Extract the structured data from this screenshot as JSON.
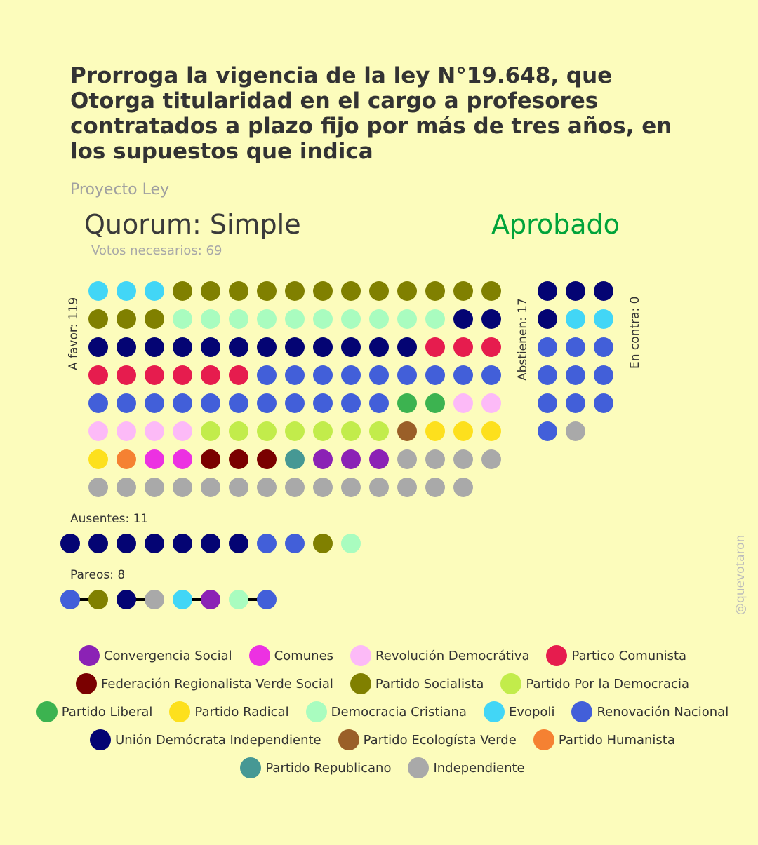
{
  "title": "Prorroga la vigencia de la ley N°19.648, que Otorga titularidad en el cargo a profesores contratados a plazo fijo por más de tres años, en los supuestos que indica",
  "subtitle": "Proyecto Ley",
  "quorum": "Quorum: Simple",
  "status": "Aprobado",
  "status_color": "#00a33a",
  "votes_needed": "Votos necesarios: 69",
  "watermark": "@quevotaron",
  "parties": {
    "CS": {
      "name": "Convergencia Social",
      "color": "#8b22b5"
    },
    "COM": {
      "name": "Comunes",
      "color": "#ec31e2"
    },
    "RD": {
      "name": "Revolución Democrátiva",
      "color": "#fcbaf7"
    },
    "PC": {
      "name": "Partico Comunista",
      "color": "#e61c4e"
    },
    "FRVS": {
      "name": "Federación Regionalista Verde Social",
      "color": "#7a0000"
    },
    "PS": {
      "name": "Partido Socialista",
      "color": "#808000"
    },
    "PPD": {
      "name": "Partido Por la Democracia",
      "color": "#c2ec4b"
    },
    "PL": {
      "name": "Partido Liberal",
      "color": "#3cb350"
    },
    "PR": {
      "name": "Partido Radical",
      "color": "#fde01d"
    },
    "DC": {
      "name": "Democracia Cristiana",
      "color": "#a9fcbf"
    },
    "EVO": {
      "name": "Evopoli",
      "color": "#42d6f6"
    },
    "RN": {
      "name": "Renovación Nacional",
      "color": "#425fd9"
    },
    "UDI": {
      "name": "Unión Demócrata Independiente",
      "color": "#040473"
    },
    "PEV": {
      "name": "Partido Ecologísta Verde",
      "color": "#9a5f28"
    },
    "PH": {
      "name": "Partido Humanista",
      "color": "#f58132"
    },
    "REP": {
      "name": "Partido Republicano",
      "color": "#469894"
    },
    "IND": {
      "name": "Independiente",
      "color": "#a9a9a9"
    }
  },
  "legend_rows": [
    [
      "CS",
      "COM",
      "RD",
      "PC"
    ],
    [
      "FRVS",
      "PS",
      "PPD"
    ],
    [
      "PL",
      "PR",
      "DC",
      "EVO",
      "RN"
    ],
    [
      "UDI",
      "PEV",
      "PH"
    ],
    [
      "REP",
      "IND"
    ]
  ],
  "chart_data": {
    "type": "dot-matrix",
    "groups": [
      {
        "key": "a_favor",
        "label": "A favor: 119",
        "count": 119,
        "votes": [
          {
            "party": "EVO",
            "count": 3
          },
          {
            "party": "PS",
            "count": 15
          },
          {
            "party": "DC",
            "count": 10
          },
          {
            "party": "UDI",
            "count": 14
          },
          {
            "party": "PC",
            "count": 9
          },
          {
            "party": "RN",
            "count": 20
          },
          {
            "party": "PL",
            "count": 2
          },
          {
            "party": "RD",
            "count": 6
          },
          {
            "party": "PPD",
            "count": 7
          },
          {
            "party": "PEV",
            "count": 1
          },
          {
            "party": "PR",
            "count": 4
          },
          {
            "party": "PH",
            "count": 1
          },
          {
            "party": "COM",
            "count": 2
          },
          {
            "party": "FRVS",
            "count": 3
          },
          {
            "party": "REP",
            "count": 1
          },
          {
            "party": "CS",
            "count": 3
          },
          {
            "party": "IND",
            "count": 18
          }
        ]
      },
      {
        "key": "abstienen",
        "label": "Abstienen: 17",
        "count": 17,
        "votes": [
          {
            "party": "UDI",
            "count": 4
          },
          {
            "party": "EVO",
            "count": 2
          },
          {
            "party": "RN",
            "count": 10
          },
          {
            "party": "IND",
            "count": 1
          }
        ]
      },
      {
        "key": "en_contra",
        "label": "En contra: 0",
        "count": 0,
        "votes": []
      },
      {
        "key": "ausentes",
        "label": "Ausentes: 11",
        "count": 11,
        "votes": [
          {
            "party": "UDI",
            "count": 7
          },
          {
            "party": "RN",
            "count": 2
          },
          {
            "party": "PS",
            "count": 1
          },
          {
            "party": "DC",
            "count": 1
          }
        ]
      },
      {
        "key": "pareos",
        "label": "Pareos: 8",
        "count": 8,
        "pairs": [
          [
            "RN",
            "PS"
          ],
          [
            "UDI",
            "IND"
          ],
          [
            "EVO",
            "CS"
          ],
          [
            "DC",
            "RN"
          ]
        ]
      }
    ]
  }
}
